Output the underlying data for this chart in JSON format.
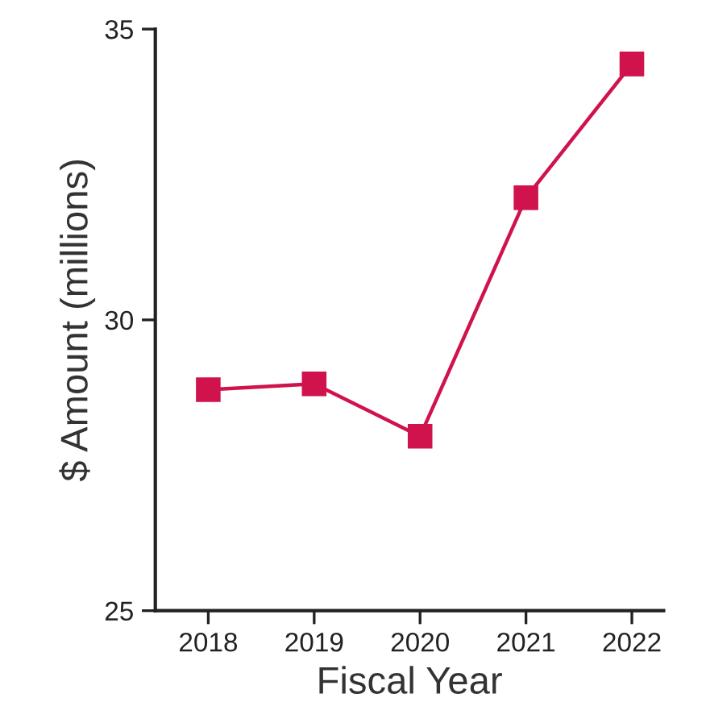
{
  "chart_data": {
    "type": "line",
    "xlabel": "Fiscal Year",
    "ylabel": "$ Amount (millions)",
    "categories": [
      "2018",
      "2019",
      "2020",
      "2021",
      "2022"
    ],
    "series": [
      {
        "color": "#d0134c",
        "values": [
          28.8,
          28.9,
          28.0,
          32.1,
          34.4
        ]
      }
    ],
    "ylim": [
      25,
      35
    ],
    "yticks": [
      25,
      30,
      35
    ],
    "marker": "square",
    "line_style": "solid",
    "grid": false,
    "legend": false
  }
}
